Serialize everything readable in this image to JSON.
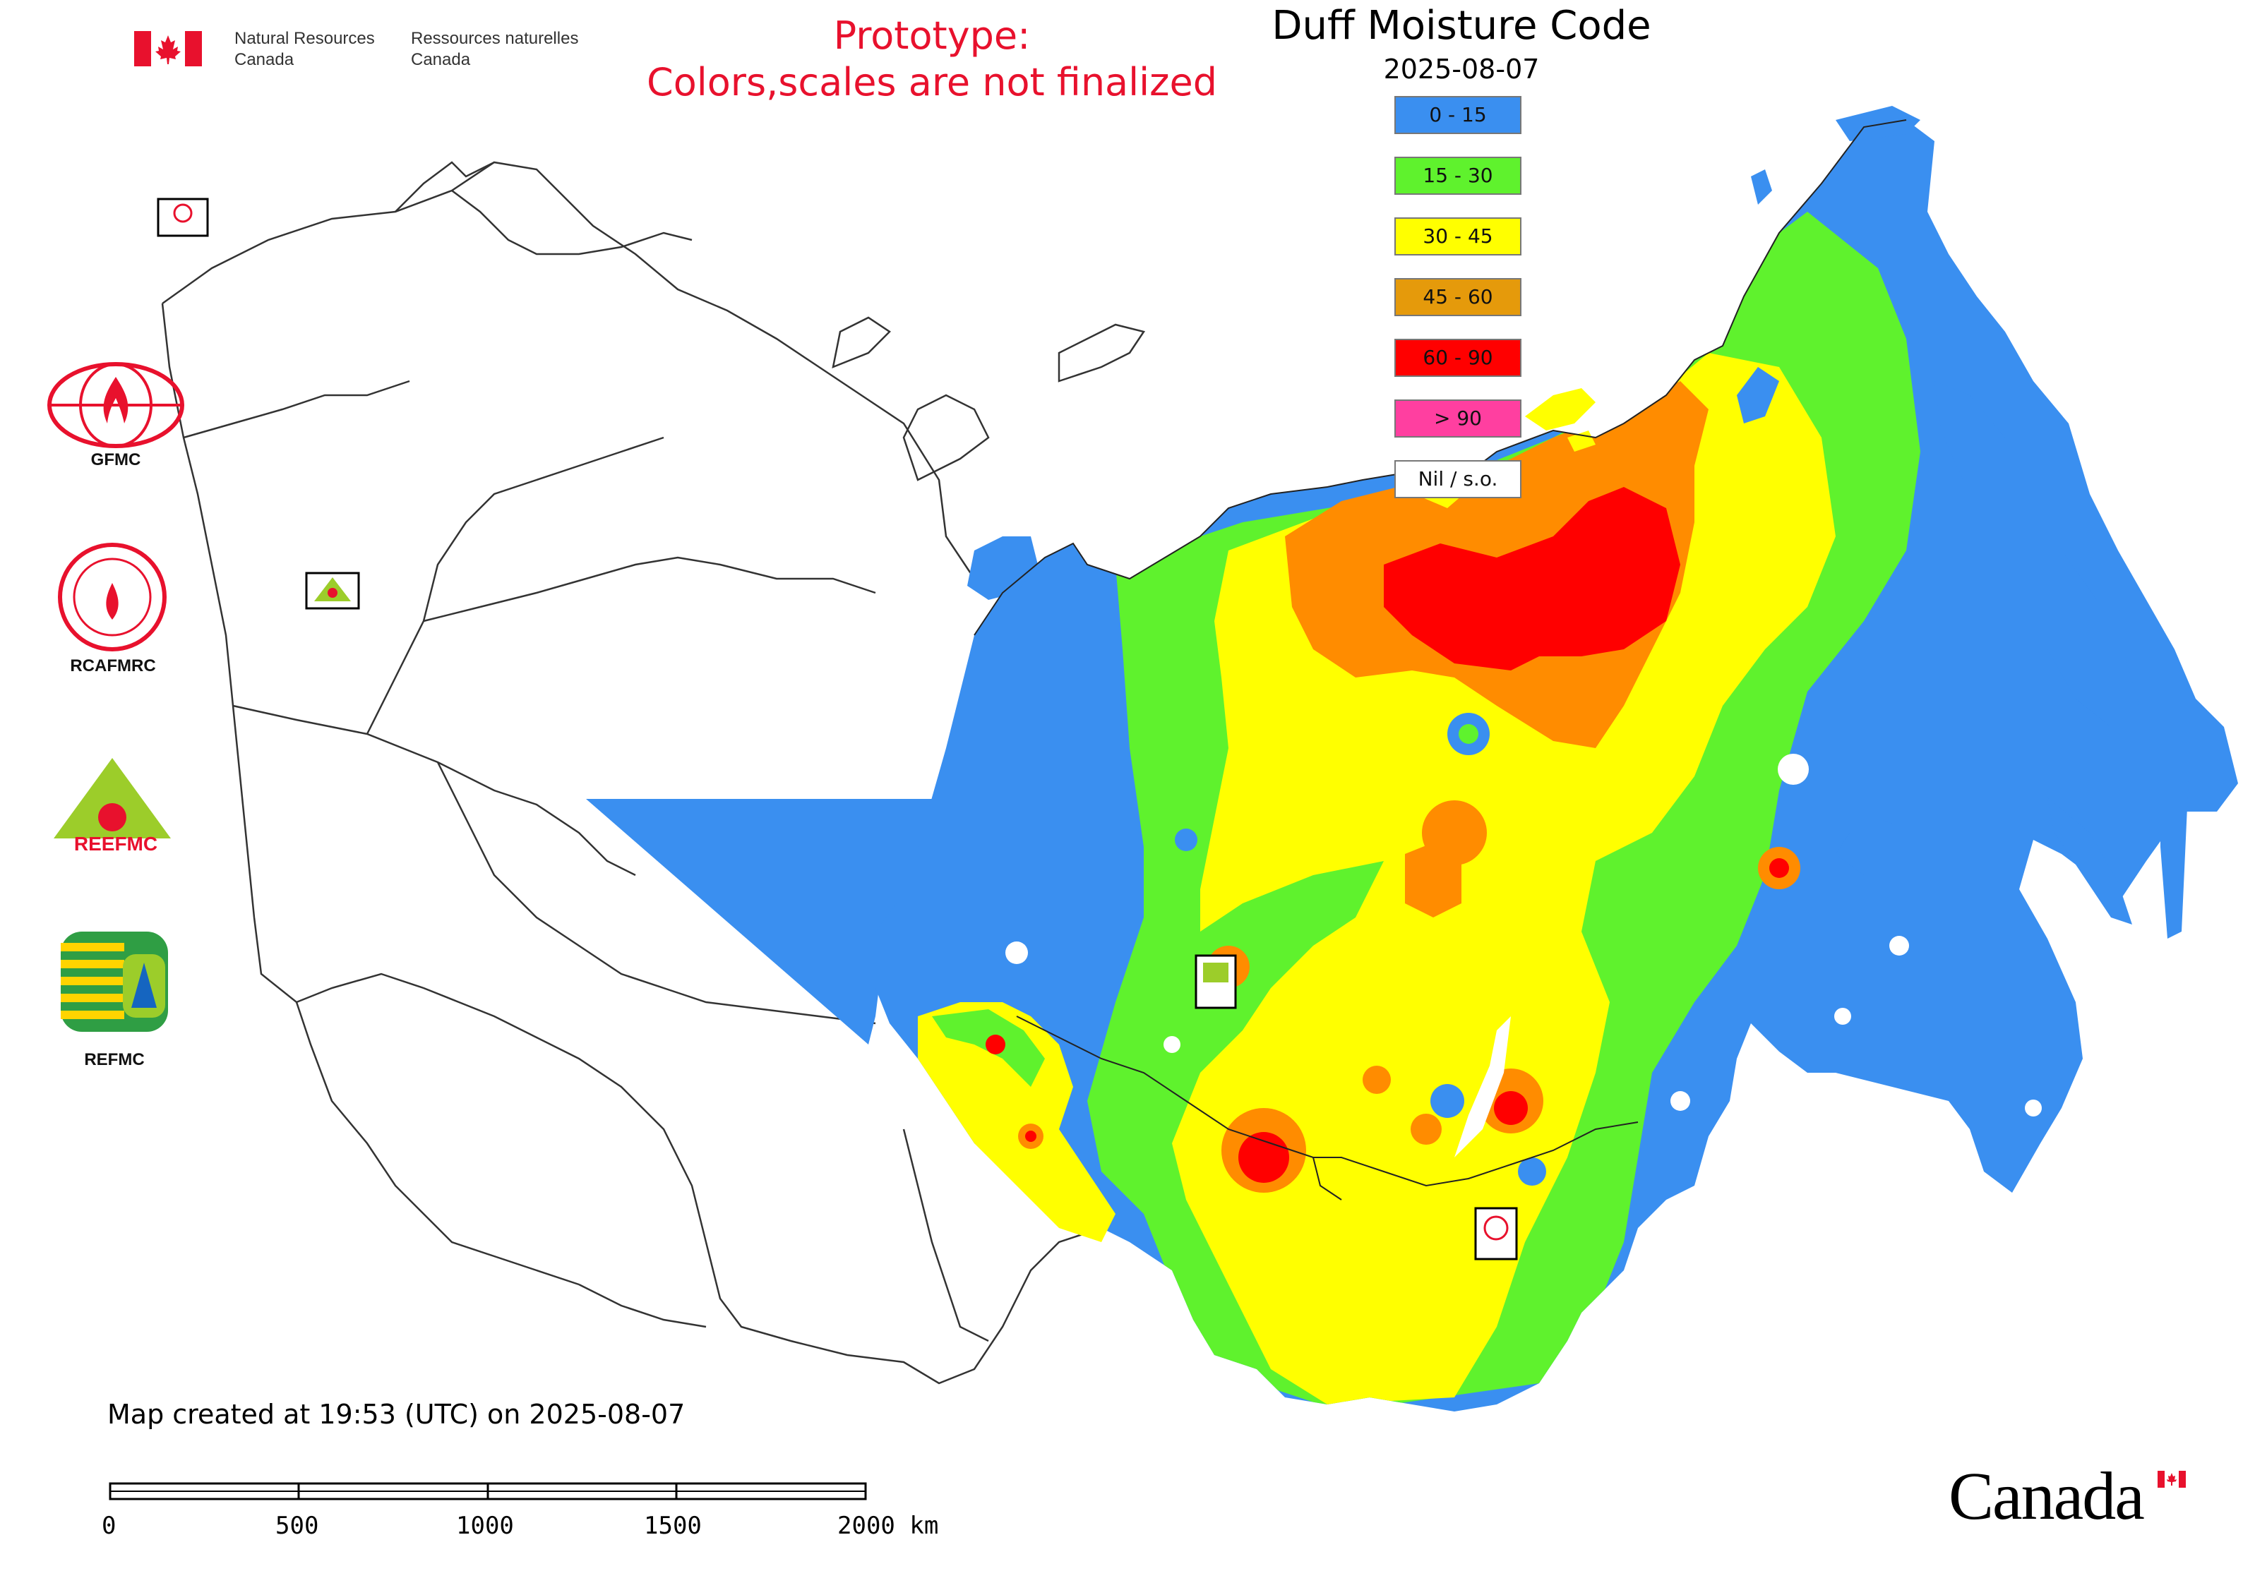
{
  "header": {
    "org_en_line1": "Natural Resources",
    "org_en_line2": "Canada",
    "org_fr_line1": "Ressources naturelles",
    "org_fr_line2": "Canada",
    "prototype_line1": "Prototype:",
    "prototype_line2": "Colors,scales are not finalized",
    "title": "Duff Moisture Code",
    "date": "2025-08-07",
    "prototype_color": "#e8112d"
  },
  "legend": {
    "items": [
      {
        "label": "0 - 15",
        "color": "#3a8ff0"
      },
      {
        "label": "15 - 30",
        "color": "#5ff22d"
      },
      {
        "label": "30 - 45",
        "color": "#ffff00"
      },
      {
        "label": "45 - 60",
        "color": "#e59a0b"
      },
      {
        "label": "60 - 90",
        "color": "#ff0000"
      },
      {
        "label": "> 90",
        "color": "#ff3fa0"
      },
      {
        "label": "Nil / s.o.",
        "color": "#ffffff"
      }
    ]
  },
  "logos": [
    {
      "label": "GFMC",
      "icon": "gfmc-logo-icon"
    },
    {
      "label": "RCAFMRC",
      "icon": "rcafmrc-logo-icon"
    },
    {
      "label": "REEFMC",
      "icon": "reefmc-logo-icon"
    },
    {
      "label": "REFMC",
      "icon": "refmc-logo-icon"
    }
  ],
  "map_markers": [
    {
      "label": "GFMC",
      "icon": "gfmc-marker-icon"
    },
    {
      "label": "REEFMC",
      "icon": "reefmc-marker-icon"
    },
    {
      "label": "REFMC",
      "icon": "refmc-marker-icon"
    },
    {
      "label": "RCAFMRC",
      "icon": "rcafmrc-marker-icon"
    }
  ],
  "footer": {
    "created": "Map created at 19:53 (UTC) on 2025-08-07",
    "scale_labels": [
      "0",
      "500",
      "1000",
      "1500",
      "2000 km"
    ],
    "wordmark": "Canada"
  }
}
